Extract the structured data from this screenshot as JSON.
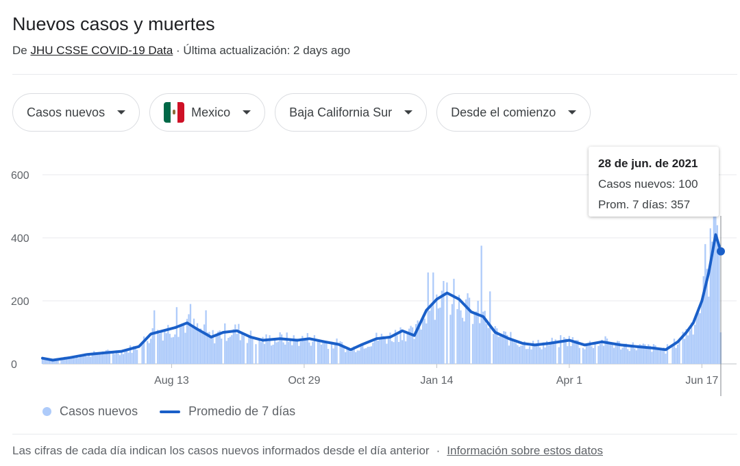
{
  "header": {
    "title": "Nuevos casos y muertes",
    "source_prefix": "De",
    "source_link": "JHU CSSE COVID-19 Data",
    "updated": "· Última actualización: 2 days ago"
  },
  "filters": {
    "metric": "Casos nuevos",
    "country": "Mexico",
    "region": "Baja California Sur",
    "range": "Desde el comienzo"
  },
  "tooltip": {
    "date": "28 de jun. de 2021",
    "cases_line": "Casos nuevos: 100",
    "avg_line": "Prom. 7 días: 357"
  },
  "legend": {
    "bars": "Casos nuevos",
    "line": "Promedio de 7 días"
  },
  "footer": {
    "note": "Las cifras de cada día indican los casos nuevos informados desde el día anterior",
    "sep": "·",
    "link": "Información sobre estos datos"
  },
  "colors": {
    "bars": "#aecbfa",
    "line": "#1a5fc8",
    "grid": "#e8eaed"
  },
  "chart_data": {
    "type": "bar",
    "ylim": [
      0,
      600
    ],
    "yticks": [
      0,
      200,
      400,
      600
    ],
    "x_start": "2020-05-30",
    "x_end": "2021-06-28",
    "xticks": [
      {
        "date": "2020-08-13",
        "label": "Aug 13"
      },
      {
        "date": "2020-10-29",
        "label": "Oct 29"
      },
      {
        "date": "2021-01-14",
        "label": "Jan 14"
      },
      {
        "date": "2021-04-01",
        "label": "Apr 1"
      },
      {
        "date": "2021-06-17",
        "label": "Jun 17"
      }
    ],
    "series": [
      {
        "name": "Promedio de 7 días",
        "type": "line",
        "points": [
          [
            "2020-05-30",
            18
          ],
          [
            "2020-06-05",
            12
          ],
          [
            "2020-06-15",
            20
          ],
          [
            "2020-06-25",
            30
          ],
          [
            "2020-07-05",
            35
          ],
          [
            "2020-07-15",
            40
          ],
          [
            "2020-07-25",
            55
          ],
          [
            "2020-08-01",
            95
          ],
          [
            "2020-08-08",
            105
          ],
          [
            "2020-08-15",
            115
          ],
          [
            "2020-08-22",
            130
          ],
          [
            "2020-08-28",
            110
          ],
          [
            "2020-09-05",
            85
          ],
          [
            "2020-09-12",
            100
          ],
          [
            "2020-09-20",
            105
          ],
          [
            "2020-09-28",
            85
          ],
          [
            "2020-10-05",
            75
          ],
          [
            "2020-10-15",
            80
          ],
          [
            "2020-10-25",
            75
          ],
          [
            "2020-11-01",
            80
          ],
          [
            "2020-11-10",
            70
          ],
          [
            "2020-11-18",
            62
          ],
          [
            "2020-11-25",
            45
          ],
          [
            "2020-12-01",
            60
          ],
          [
            "2020-12-10",
            80
          ],
          [
            "2020-12-18",
            85
          ],
          [
            "2020-12-25",
            105
          ],
          [
            "2021-01-01",
            90
          ],
          [
            "2021-01-08",
            170
          ],
          [
            "2021-01-14",
            205
          ],
          [
            "2021-01-20",
            225
          ],
          [
            "2021-01-27",
            205
          ],
          [
            "2021-02-03",
            165
          ],
          [
            "2021-02-10",
            150
          ],
          [
            "2021-02-17",
            100
          ],
          [
            "2021-02-25",
            80
          ],
          [
            "2021-03-05",
            65
          ],
          [
            "2021-03-12",
            60
          ],
          [
            "2021-03-20",
            65
          ],
          [
            "2021-04-01",
            75
          ],
          [
            "2021-04-10",
            60
          ],
          [
            "2021-04-20",
            70
          ],
          [
            "2021-05-01",
            60
          ],
          [
            "2021-05-10",
            55
          ],
          [
            "2021-05-20",
            50
          ],
          [
            "2021-05-27",
            45
          ],
          [
            "2021-06-03",
            70
          ],
          [
            "2021-06-08",
            100
          ],
          [
            "2021-06-12",
            130
          ],
          [
            "2021-06-17",
            200
          ],
          [
            "2021-06-21",
            290
          ],
          [
            "2021-06-25",
            410
          ],
          [
            "2021-06-28",
            357
          ]
        ]
      },
      {
        "name": "Casos nuevos",
        "type": "bar",
        "spikes": [
          [
            "2020-08-03",
            170
          ],
          [
            "2020-08-16",
            180
          ],
          [
            "2020-08-24",
            190
          ],
          [
            "2020-09-02",
            170
          ],
          [
            "2021-01-09",
            290
          ],
          [
            "2021-01-12",
            290
          ],
          [
            "2021-01-24",
            270
          ],
          [
            "2021-02-09",
            375
          ],
          [
            "2021-02-14",
            230
          ],
          [
            "2021-06-19",
            380
          ],
          [
            "2021-06-22",
            430
          ],
          [
            "2021-06-24",
            470
          ],
          [
            "2021-06-26",
            440
          ],
          [
            "2021-06-28",
            100
          ]
        ]
      }
    ]
  }
}
